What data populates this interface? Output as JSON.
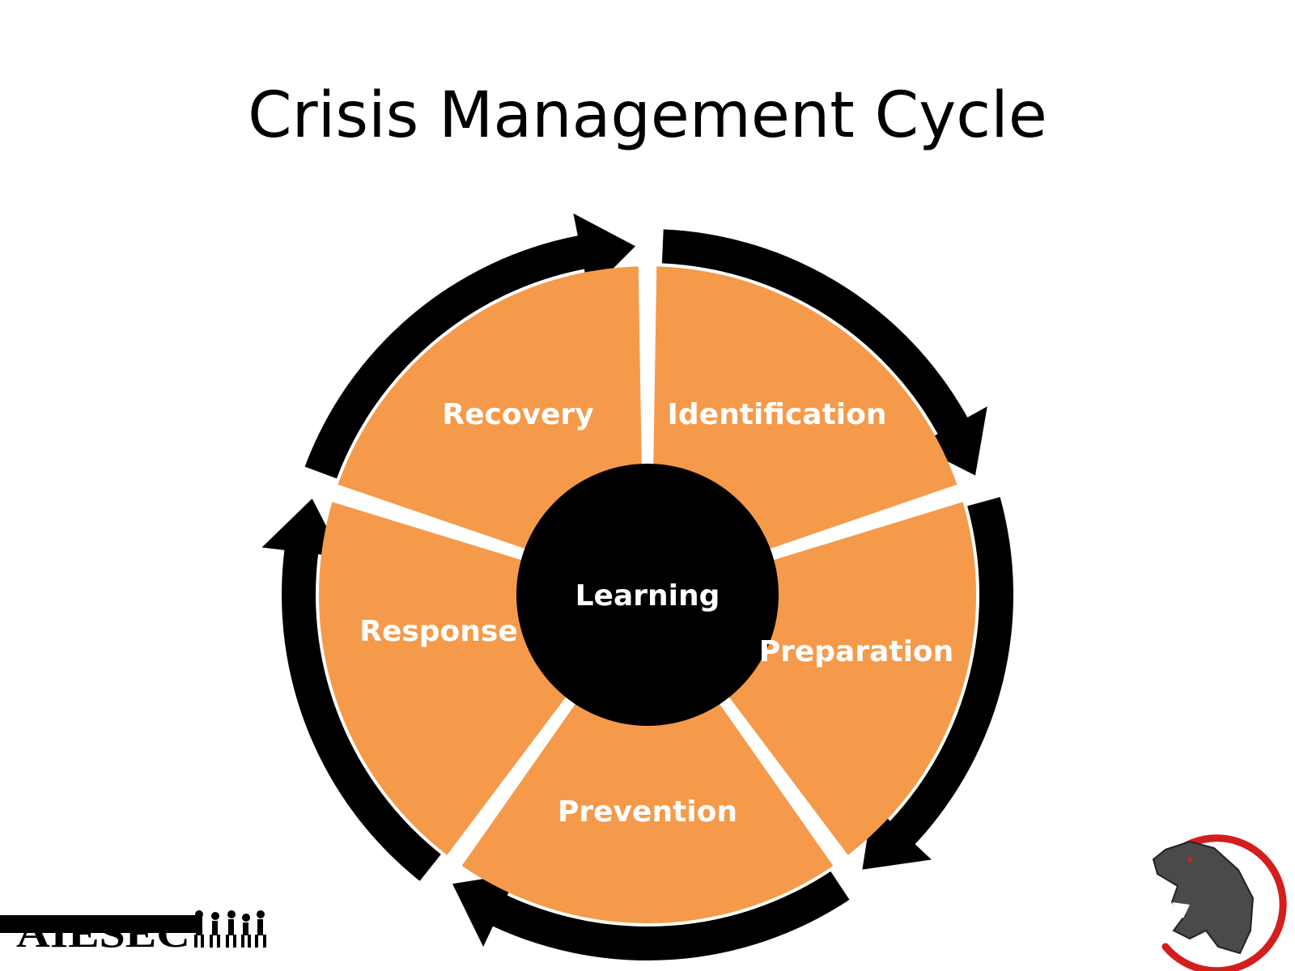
{
  "slide": {
    "title": "Crisis Management Cycle"
  },
  "diagram": {
    "center_label": "Learning",
    "segments": [
      {
        "label": "Identification"
      },
      {
        "label": "Preparation"
      },
      {
        "label": "Prevention"
      },
      {
        "label": "Response"
      },
      {
        "label": "Recovery"
      }
    ],
    "colors": {
      "segment_fill": "#F59A4A",
      "arrow": "#000000",
      "center": "#000000",
      "label": "#FFFFFF"
    }
  },
  "logos": {
    "organization": "AIESEC",
    "emblem_icon": "dinosaur-emblem-icon",
    "emblem_ring_color": "#D41E1E"
  }
}
